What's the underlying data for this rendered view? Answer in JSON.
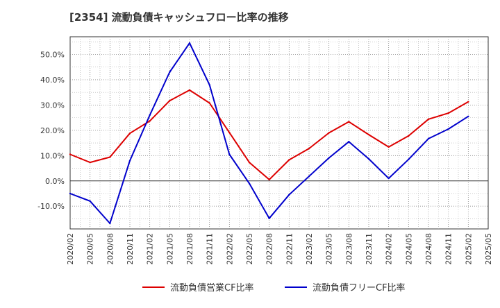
{
  "chart_data": {
    "type": "line",
    "title": "[2354]  流動負債キャッシュフロー比率の推移",
    "xlabel": "",
    "ylabel": "",
    "x": [
      "2020/02",
      "2020/05",
      "2020/08",
      "2020/11",
      "2021/02",
      "2021/05",
      "2021/08",
      "2021/11",
      "2022/02",
      "2022/05",
      "2022/08",
      "2022/11",
      "2023/02",
      "2023/05",
      "2023/08",
      "2023/11",
      "2024/02",
      "2024/05",
      "2024/08",
      "2024/11",
      "2025/02",
      "2025/05"
    ],
    "y_ticks": [
      "50.0%",
      "40.0%",
      "30.0%",
      "20.0%",
      "10.0%",
      "0.0%",
      "-10.0%"
    ],
    "y_tick_values": [
      50,
      40,
      30,
      20,
      10,
      0,
      -10
    ],
    "ylim": [
      -19,
      57
    ],
    "grid": true,
    "legend_position": "bottom",
    "series": [
      {
        "name": "流動負債営業CF比率",
        "color": "#dd0000",
        "values": [
          10.5,
          7.3,
          9.4,
          18.8,
          23.7,
          31.7,
          35.9,
          30.8,
          19.1,
          7.3,
          0.5,
          8.3,
          12.8,
          19.0,
          23.4,
          18.3,
          13.4,
          17.8,
          24.4,
          26.8,
          31.3,
          null
        ]
      },
      {
        "name": "流動負債フリーCF比率",
        "color": "#0000cc",
        "values": [
          -5.0,
          -8.0,
          -16.8,
          8.0,
          26.0,
          43.0,
          54.5,
          38.0,
          10.5,
          -1.0,
          -14.8,
          -5.5,
          1.8,
          9.1,
          15.5,
          8.7,
          1.0,
          8.5,
          16.7,
          20.5,
          25.5,
          null
        ]
      }
    ]
  }
}
